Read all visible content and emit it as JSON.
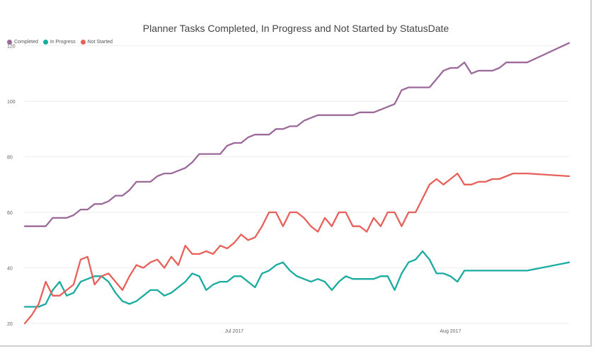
{
  "chart_data": {
    "type": "line",
    "title": "Planner Tasks Completed, In Progress and Not Started by StatusDate",
    "xlabel": "",
    "ylabel": "",
    "ylim": [
      20,
      125
    ],
    "yticks": [
      20,
      40,
      60,
      80,
      100,
      120
    ],
    "xticks": [
      {
        "date": "2017-07-01",
        "label": "Jul 2017"
      },
      {
        "date": "2017-08-01",
        "label": "Aug 2017"
      }
    ],
    "xrange": [
      "2017-06-01",
      "2017-08-18"
    ],
    "grid": true,
    "legend_position": "top-left",
    "series": [
      {
        "name": "Completed",
        "color": "#9b6a9a",
        "points": [
          [
            "2017-06-01",
            55
          ],
          [
            "2017-06-04",
            55
          ],
          [
            "2017-06-05",
            58
          ],
          [
            "2017-06-07",
            58
          ],
          [
            "2017-06-08",
            59
          ],
          [
            "2017-06-09",
            61
          ],
          [
            "2017-06-10",
            61
          ],
          [
            "2017-06-11",
            63
          ],
          [
            "2017-06-12",
            63
          ],
          [
            "2017-06-13",
            64
          ],
          [
            "2017-06-14",
            66
          ],
          [
            "2017-06-15",
            66
          ],
          [
            "2017-06-16",
            68
          ],
          [
            "2017-06-17",
            71
          ],
          [
            "2017-06-19",
            71
          ],
          [
            "2017-06-20",
            73
          ],
          [
            "2017-06-21",
            74
          ],
          [
            "2017-06-22",
            74
          ],
          [
            "2017-06-23",
            75
          ],
          [
            "2017-06-24",
            76
          ],
          [
            "2017-06-25",
            78
          ],
          [
            "2017-06-26",
            81
          ],
          [
            "2017-06-29",
            81
          ],
          [
            "2017-06-30",
            84
          ],
          [
            "2017-07-01",
            85
          ],
          [
            "2017-07-02",
            85
          ],
          [
            "2017-07-03",
            87
          ],
          [
            "2017-07-04",
            88
          ],
          [
            "2017-07-06",
            88
          ],
          [
            "2017-07-07",
            90
          ],
          [
            "2017-07-08",
            90
          ],
          [
            "2017-07-09",
            91
          ],
          [
            "2017-07-10",
            91
          ],
          [
            "2017-07-11",
            93
          ],
          [
            "2017-07-12",
            94
          ],
          [
            "2017-07-13",
            95
          ],
          [
            "2017-07-18",
            95
          ],
          [
            "2017-07-19",
            96
          ],
          [
            "2017-07-21",
            96
          ],
          [
            "2017-07-22",
            97
          ],
          [
            "2017-07-23",
            98
          ],
          [
            "2017-07-24",
            99
          ],
          [
            "2017-07-25",
            104
          ],
          [
            "2017-07-26",
            105
          ],
          [
            "2017-07-29",
            105
          ],
          [
            "2017-07-30",
            108
          ],
          [
            "2017-07-31",
            111
          ],
          [
            "2017-08-01",
            112
          ],
          [
            "2017-08-02",
            112
          ],
          [
            "2017-08-03",
            114
          ],
          [
            "2017-08-04",
            110
          ],
          [
            "2017-08-05",
            111
          ],
          [
            "2017-08-07",
            111
          ],
          [
            "2017-08-08",
            112
          ],
          [
            "2017-08-09",
            114
          ],
          [
            "2017-08-12",
            114
          ],
          [
            "2017-08-18",
            121
          ]
        ]
      },
      {
        "name": "In Progress",
        "color": "#1aaba0",
        "points": [
          [
            "2017-06-01",
            26
          ],
          [
            "2017-06-03",
            26
          ],
          [
            "2017-06-04",
            27
          ],
          [
            "2017-06-05",
            32
          ],
          [
            "2017-06-06",
            35
          ],
          [
            "2017-06-07",
            30
          ],
          [
            "2017-06-08",
            31
          ],
          [
            "2017-06-09",
            35
          ],
          [
            "2017-06-10",
            36
          ],
          [
            "2017-06-11",
            37
          ],
          [
            "2017-06-12",
            37
          ],
          [
            "2017-06-13",
            35
          ],
          [
            "2017-06-14",
            31
          ],
          [
            "2017-06-15",
            28
          ],
          [
            "2017-06-16",
            27
          ],
          [
            "2017-06-17",
            28
          ],
          [
            "2017-06-18",
            30
          ],
          [
            "2017-06-19",
            32
          ],
          [
            "2017-06-20",
            32
          ],
          [
            "2017-06-21",
            30
          ],
          [
            "2017-06-22",
            31
          ],
          [
            "2017-06-23",
            33
          ],
          [
            "2017-06-24",
            35
          ],
          [
            "2017-06-25",
            38
          ],
          [
            "2017-06-26",
            37
          ],
          [
            "2017-06-27",
            32
          ],
          [
            "2017-06-28",
            34
          ],
          [
            "2017-06-29",
            35
          ],
          [
            "2017-06-30",
            35
          ],
          [
            "2017-07-01",
            37
          ],
          [
            "2017-07-02",
            37
          ],
          [
            "2017-07-04",
            33
          ],
          [
            "2017-07-05",
            38
          ],
          [
            "2017-07-06",
            39
          ],
          [
            "2017-07-07",
            41
          ],
          [
            "2017-07-08",
            42
          ],
          [
            "2017-07-09",
            39
          ],
          [
            "2017-07-10",
            37
          ],
          [
            "2017-07-11",
            36
          ],
          [
            "2017-07-12",
            35
          ],
          [
            "2017-07-13",
            36
          ],
          [
            "2017-07-14",
            35
          ],
          [
            "2017-07-15",
            32
          ],
          [
            "2017-07-16",
            35
          ],
          [
            "2017-07-17",
            37
          ],
          [
            "2017-07-18",
            36
          ],
          [
            "2017-07-21",
            36
          ],
          [
            "2017-07-22",
            37
          ],
          [
            "2017-07-23",
            37
          ],
          [
            "2017-07-24",
            32
          ],
          [
            "2017-07-25",
            38
          ],
          [
            "2017-07-26",
            42
          ],
          [
            "2017-07-27",
            43
          ],
          [
            "2017-07-28",
            46
          ],
          [
            "2017-07-29",
            43
          ],
          [
            "2017-07-30",
            38
          ],
          [
            "2017-07-31",
            38
          ],
          [
            "2017-08-01",
            37
          ],
          [
            "2017-08-02",
            35
          ],
          [
            "2017-08-03",
            39
          ],
          [
            "2017-08-12",
            39
          ],
          [
            "2017-08-18",
            42
          ]
        ]
      },
      {
        "name": "Not Started",
        "color": "#e8605a",
        "points": [
          [
            "2017-06-01",
            20
          ],
          [
            "2017-06-02",
            23
          ],
          [
            "2017-06-03",
            27
          ],
          [
            "2017-06-04",
            35
          ],
          [
            "2017-06-05",
            30
          ],
          [
            "2017-06-06",
            30
          ],
          [
            "2017-06-07",
            32
          ],
          [
            "2017-06-08",
            34
          ],
          [
            "2017-06-09",
            43
          ],
          [
            "2017-06-10",
            44
          ],
          [
            "2017-06-11",
            34
          ],
          [
            "2017-06-12",
            37
          ],
          [
            "2017-06-13",
            38
          ],
          [
            "2017-06-14",
            35
          ],
          [
            "2017-06-15",
            32
          ],
          [
            "2017-06-16",
            37
          ],
          [
            "2017-06-17",
            41
          ],
          [
            "2017-06-18",
            40
          ],
          [
            "2017-06-19",
            42
          ],
          [
            "2017-06-20",
            43
          ],
          [
            "2017-06-21",
            40
          ],
          [
            "2017-06-22",
            44
          ],
          [
            "2017-06-23",
            41
          ],
          [
            "2017-06-24",
            48
          ],
          [
            "2017-06-25",
            45
          ],
          [
            "2017-06-26",
            45
          ],
          [
            "2017-06-27",
            46
          ],
          [
            "2017-06-28",
            45
          ],
          [
            "2017-06-29",
            48
          ],
          [
            "2017-06-30",
            47
          ],
          [
            "2017-07-01",
            49
          ],
          [
            "2017-07-02",
            52
          ],
          [
            "2017-07-03",
            50
          ],
          [
            "2017-07-04",
            51
          ],
          [
            "2017-07-05",
            55
          ],
          [
            "2017-07-06",
            60
          ],
          [
            "2017-07-07",
            60
          ],
          [
            "2017-07-08",
            55
          ],
          [
            "2017-07-09",
            60
          ],
          [
            "2017-07-10",
            60
          ],
          [
            "2017-07-11",
            58
          ],
          [
            "2017-07-12",
            55
          ],
          [
            "2017-07-13",
            53
          ],
          [
            "2017-07-14",
            58
          ],
          [
            "2017-07-15",
            55
          ],
          [
            "2017-07-16",
            60
          ],
          [
            "2017-07-17",
            60
          ],
          [
            "2017-07-18",
            55
          ],
          [
            "2017-07-19",
            55
          ],
          [
            "2017-07-20",
            53
          ],
          [
            "2017-07-21",
            58
          ],
          [
            "2017-07-22",
            55
          ],
          [
            "2017-07-23",
            60
          ],
          [
            "2017-07-24",
            60
          ],
          [
            "2017-07-25",
            55
          ],
          [
            "2017-07-26",
            60
          ],
          [
            "2017-07-27",
            60
          ],
          [
            "2017-07-28",
            65
          ],
          [
            "2017-07-29",
            70
          ],
          [
            "2017-07-30",
            72
          ],
          [
            "2017-07-31",
            70
          ],
          [
            "2017-08-01",
            72
          ],
          [
            "2017-08-02",
            74
          ],
          [
            "2017-08-03",
            70
          ],
          [
            "2017-08-04",
            70
          ],
          [
            "2017-08-05",
            71
          ],
          [
            "2017-08-06",
            71
          ],
          [
            "2017-08-07",
            72
          ],
          [
            "2017-08-08",
            72
          ],
          [
            "2017-08-09",
            73
          ],
          [
            "2017-08-10",
            74
          ],
          [
            "2017-08-12",
            74
          ],
          [
            "2017-08-18",
            73
          ]
        ]
      }
    ]
  }
}
